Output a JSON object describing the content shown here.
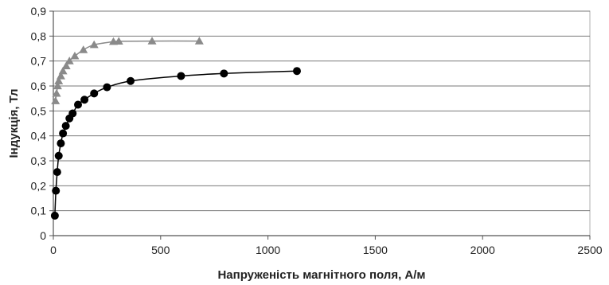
{
  "chart_data": {
    "type": "scatter",
    "xlabel": "Напруженість магнітного поля, А/м",
    "ylabel": "Індукція, Тл",
    "xlim": [
      0,
      2500
    ],
    "ylim": [
      0,
      0.9
    ],
    "x_ticks": [
      0,
      500,
      1000,
      1500,
      2000,
      2500
    ],
    "x_tick_labels": [
      "0",
      "500",
      "1000",
      "1500",
      "2000",
      "2500"
    ],
    "y_ticks": [
      0,
      0.1,
      0.2,
      0.3,
      0.4,
      0.5,
      0.6,
      0.7,
      0.8,
      0.9
    ],
    "y_tick_labels": [
      "0",
      "0,1",
      "0,2",
      "0,3",
      "0,4",
      "0,5",
      "0,6",
      "0,7",
      "0,8",
      "0,9"
    ],
    "grid": "horizontal",
    "legend": "none",
    "series": [
      {
        "marker": "triangle",
        "color": "#8a8a8a",
        "points": [
          [
            10,
            0.54
          ],
          [
            15,
            0.57
          ],
          [
            20,
            0.6
          ],
          [
            25,
            0.62
          ],
          [
            35,
            0.64
          ],
          [
            45,
            0.66
          ],
          [
            60,
            0.68
          ],
          [
            75,
            0.7
          ],
          [
            100,
            0.72
          ],
          [
            140,
            0.745
          ],
          [
            190,
            0.765
          ],
          [
            280,
            0.778
          ],
          [
            305,
            0.779
          ],
          [
            460,
            0.78
          ],
          [
            680,
            0.78
          ]
        ]
      },
      {
        "marker": "circle",
        "color": "#000000",
        "points": [
          [
            7,
            0.08
          ],
          [
            12,
            0.18
          ],
          [
            18,
            0.255
          ],
          [
            25,
            0.32
          ],
          [
            35,
            0.37
          ],
          [
            45,
            0.41
          ],
          [
            58,
            0.44
          ],
          [
            75,
            0.47
          ],
          [
            90,
            0.49
          ],
          [
            115,
            0.525
          ],
          [
            145,
            0.545
          ],
          [
            190,
            0.57
          ],
          [
            250,
            0.595
          ],
          [
            360,
            0.62
          ],
          [
            595,
            0.64
          ],
          [
            795,
            0.65
          ],
          [
            1135,
            0.66
          ]
        ]
      }
    ]
  }
}
